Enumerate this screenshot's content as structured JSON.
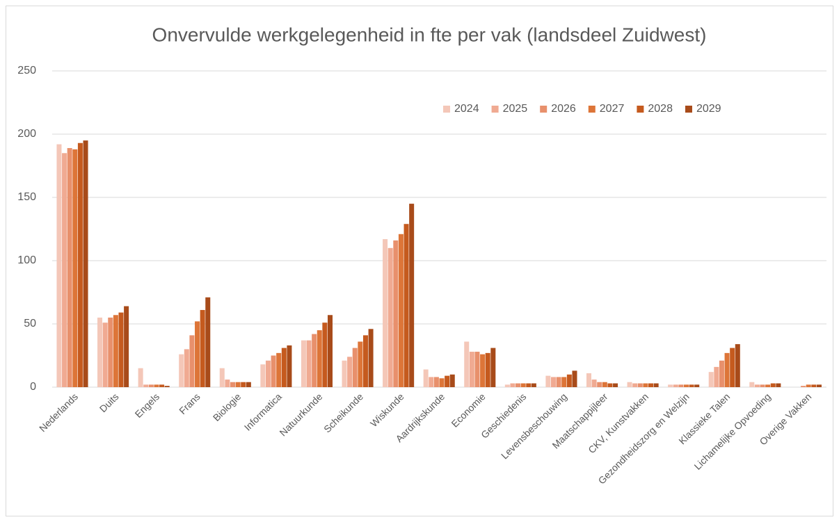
{
  "chart_data": {
    "type": "bar",
    "title": "Onvervulde werkgelegenheid in fte per vak (landsdeel Zuidwest)",
    "categories": [
      "Nederlands",
      "Duits",
      "Engels",
      "Frans",
      "Biologie",
      "Informatica",
      "Natuurkunde",
      "Scheikunde",
      "Wiskunde",
      "Aardrijkskunde",
      "Economie",
      "Geschiedenis",
      "Levensbeschouwing",
      "Maatschappijleer",
      "CKV, Kunstvakken",
      "Gezondheidszorg en Welzijn",
      "Klassieke Talen",
      "Lichamelijke Opvoeding",
      "Overige Vakken"
    ],
    "series": [
      {
        "name": "2024",
        "color": "#f4c7b8",
        "values": [
          192,
          55,
          15,
          26,
          15,
          18,
          37,
          21,
          117,
          14,
          36,
          2,
          9,
          11,
          4,
          2,
          12,
          4,
          0
        ]
      },
      {
        "name": "2025",
        "color": "#f0aa92",
        "values": [
          185,
          51,
          2,
          30,
          6,
          21,
          37,
          24,
          110,
          8,
          28,
          3,
          8,
          6,
          3,
          2,
          16,
          2,
          0
        ]
      },
      {
        "name": "2026",
        "color": "#e8906c",
        "values": [
          189,
          55,
          2,
          41,
          4,
          25,
          42,
          31,
          116,
          8,
          28,
          3,
          8,
          4,
          3,
          2,
          21,
          2,
          1
        ]
      },
      {
        "name": "2027",
        "color": "#dd7538",
        "values": [
          188,
          57,
          2,
          52,
          4,
          27,
          45,
          36,
          121,
          7,
          26,
          3,
          8,
          4,
          3,
          2,
          27,
          2,
          2
        ]
      },
      {
        "name": "2028",
        "color": "#c55a1e",
        "values": [
          193,
          59,
          2,
          61,
          4,
          31,
          51,
          41,
          129,
          9,
          27,
          3,
          10,
          3,
          3,
          2,
          31,
          3,
          2
        ]
      },
      {
        "name": "2029",
        "color": "#a84b1a",
        "values": [
          195,
          64,
          1,
          71,
          4,
          33,
          57,
          46,
          145,
          10,
          31,
          3,
          13,
          3,
          3,
          2,
          34,
          3,
          2
        ]
      }
    ],
    "ylim": [
      0,
      250
    ],
    "yticks": [
      0,
      50,
      100,
      150,
      200,
      250
    ],
    "grid": true,
    "legend": "top-right"
  }
}
